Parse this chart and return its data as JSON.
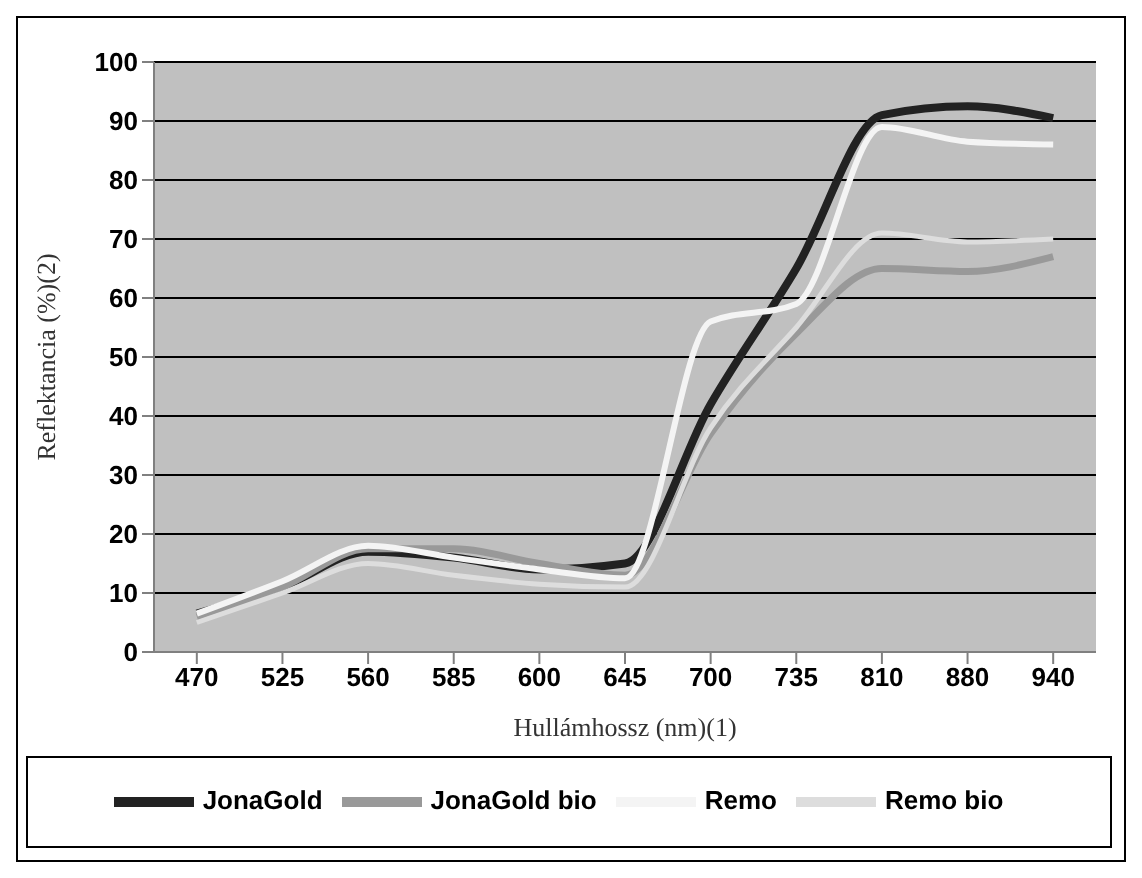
{
  "chart_data": {
    "type": "line",
    "xlabel": "Hullámhossz (nm)(1)",
    "ylabel": "Reflektancia (%)(2)",
    "categories": [
      "470",
      "525",
      "560",
      "585",
      "600",
      "645",
      "700",
      "735",
      "810",
      "880",
      "940"
    ],
    "series": [
      {
        "name": "JonaGold",
        "color": "#222222",
        "values": [
          6.5,
          11,
          17,
          16,
          14,
          15,
          42,
          65,
          91,
          92.5,
          90.5
        ]
      },
      {
        "name": "JonaGold bio",
        "color": "#999999",
        "values": [
          6,
          11,
          17.5,
          17.5,
          15,
          13,
          37,
          54,
          65,
          64.5,
          67
        ]
      },
      {
        "name": "Remo",
        "color": "#f4f4f4",
        "values": [
          6.5,
          12,
          18,
          16,
          14,
          12.5,
          56,
          59,
          89,
          86.5,
          86
        ]
      },
      {
        "name": "Remo bio",
        "color": "#dddddd",
        "values": [
          5,
          10,
          15,
          13,
          11.5,
          11,
          38,
          55,
          71,
          69.5,
          70
        ]
      }
    ],
    "ylim": [
      0,
      100
    ],
    "yticks": [
      0,
      10,
      20,
      30,
      40,
      50,
      60,
      70,
      80,
      90,
      100
    ],
    "grid": "y",
    "legend": "bottom",
    "marker": "none",
    "line_style": "solid"
  }
}
